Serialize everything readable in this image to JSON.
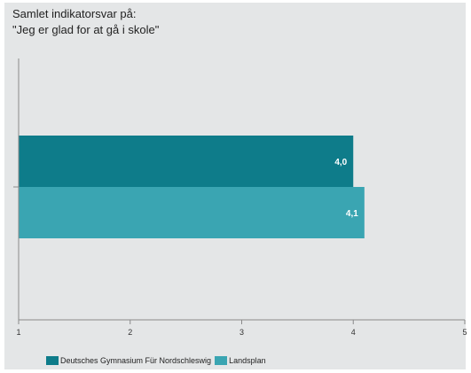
{
  "chart_data": {
    "type": "bar",
    "orientation": "horizontal",
    "title_lines": [
      "Samlet indikatorsvar på:",
      "\"Jeg er glad for at gå i skole\""
    ],
    "xlim": [
      1,
      5
    ],
    "xticks": [
      "1",
      "2",
      "3",
      "4",
      "5"
    ],
    "grid": false,
    "legend_position": "bottom-left",
    "series": [
      {
        "name": "Deutsches Gymnasium Für Nordschleswig",
        "value": 4.0,
        "label": "4,0",
        "color": "#0e7c8a"
      },
      {
        "name": "Landsplan",
        "value": 4.1,
        "label": "4,1",
        "color": "#3aa5b2"
      }
    ]
  }
}
